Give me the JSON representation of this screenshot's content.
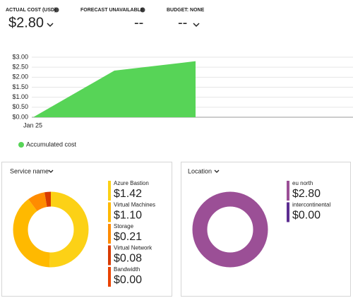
{
  "header": {
    "items": [
      {
        "label": "ACTUAL COST (USD)",
        "value": "$2.80"
      },
      {
        "label": "FORECAST UNAVAILABLE",
        "value": "--"
      },
      {
        "label": "BUDGET: NONE",
        "value": "--"
      }
    ]
  },
  "chart_data": [
    {
      "type": "area",
      "categories": [
        "Jan 25",
        null,
        null
      ],
      "series": [
        {
          "name": "Accumulated cost",
          "color": "#57d457",
          "values": [
            0,
            2.33,
            2.8
          ]
        }
      ],
      "ylim": [
        0,
        3
      ],
      "yticks": [
        {
          "value": 0,
          "label": "$0.00"
        },
        {
          "value": 0.5,
          "label": "$0.50"
        },
        {
          "value": 1,
          "label": "$1.00"
        },
        {
          "value": 1.5,
          "label": "$1.50"
        },
        {
          "value": 2,
          "label": "$2.00"
        },
        {
          "value": 2.5,
          "label": "$2.50"
        },
        {
          "value": 3,
          "label": "$3.00"
        }
      ],
      "grid": true
    },
    {
      "type": "donut",
      "title": "Service name",
      "categories": [
        "Azure Bastion",
        "Virtual Machines",
        "Storage",
        "Virtual Network",
        "Bandwidth"
      ],
      "values": [
        1.42,
        1.1,
        0.21,
        0.08,
        0
      ],
      "value_labels": [
        "$1.42",
        "$1.10",
        "$0.21",
        "$0.08",
        "$0.00"
      ],
      "colors": [
        "#fcd116",
        "#ffb900",
        "#ff8c00",
        "#d83b01",
        "#ea4300"
      ]
    },
    {
      "type": "donut",
      "title": "Location",
      "categories": [
        "eu north",
        "intercontinental"
      ],
      "values": [
        2.8,
        0
      ],
      "value_labels": [
        "$2.80",
        "$0.00"
      ],
      "colors": [
        "#9b4f96",
        "#5c2d91"
      ]
    }
  ]
}
